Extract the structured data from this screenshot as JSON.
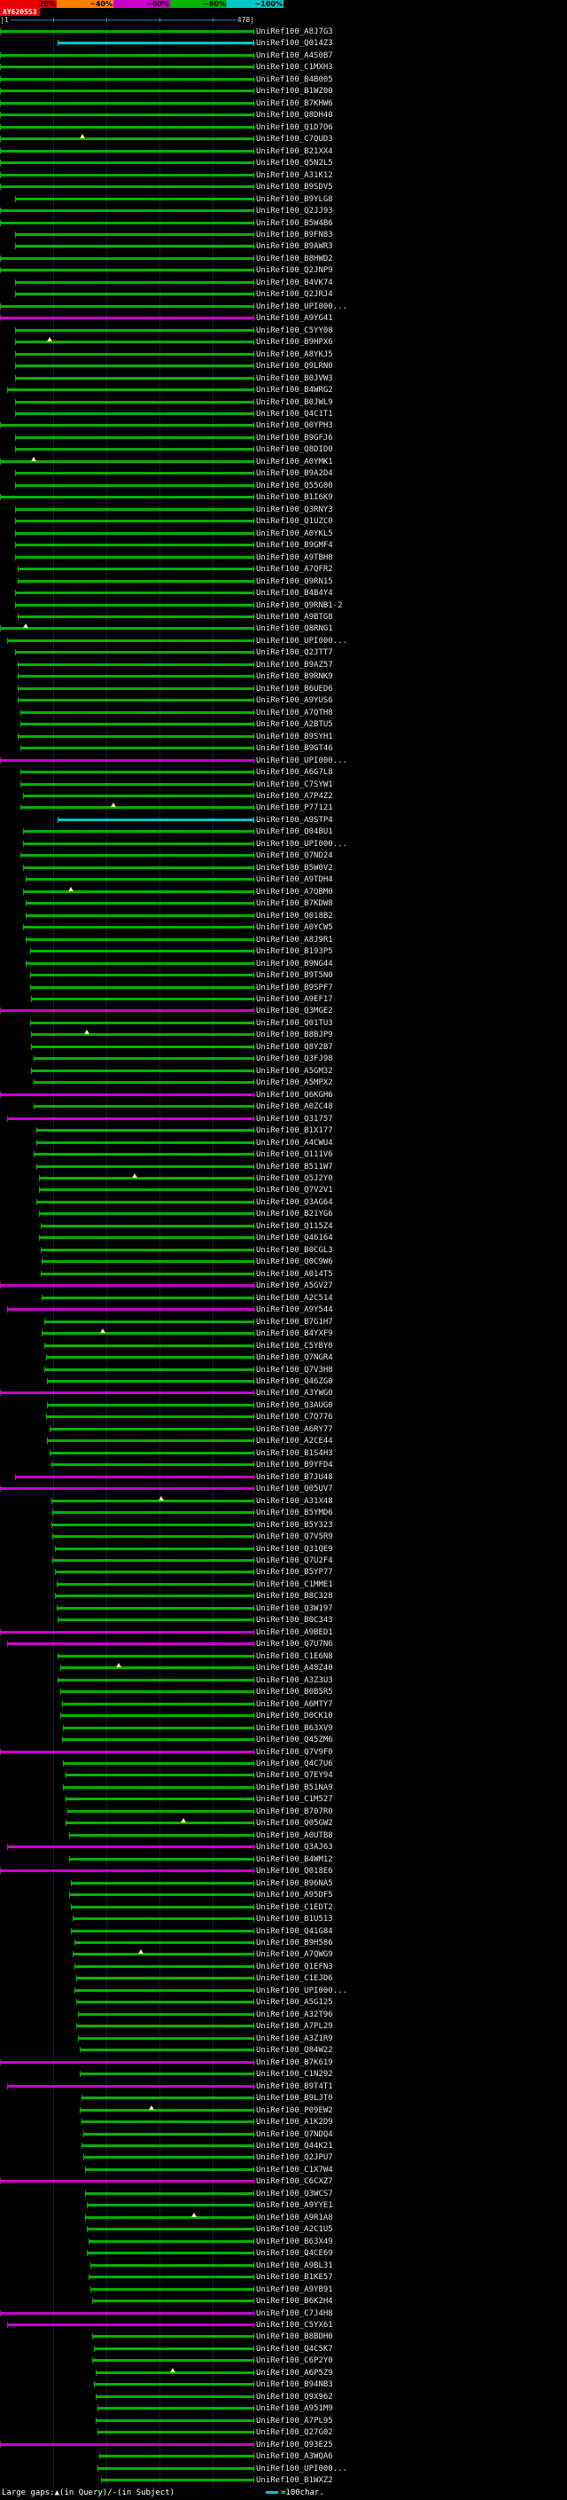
{
  "key": {
    "segments": [
      {
        "label": "20%",
        "color": "#e80000"
      },
      {
        "label": "~40%",
        "color": "#ff8000"
      },
      {
        "label": "~60%",
        "color": "#cc00cc"
      },
      {
        "label": "~80%",
        "color": "#00b400"
      },
      {
        "label": "~100%",
        "color": "#00c8c8"
      }
    ]
  },
  "query": {
    "name": "AY620553",
    "start_label": "|1",
    "end_label": "478|",
    "length": 478
  },
  "colors": {
    "green": "#00b400",
    "magenta": "#cc00cc",
    "cyan": "#00c8c8",
    "red": "#e80000",
    "ruler": "#2e7bbf",
    "gap_marker": "#ffee88"
  },
  "footer": {
    "gaps_legend": "Large gaps:▲(in Query)/-(in Subject)",
    "scale_legend": "=100char."
  },
  "chart_data": {
    "type": "bar",
    "subtype": "alignment-overview-spans",
    "title": "AY620553",
    "x_axis": {
      "min": 1,
      "max": 478,
      "start_label": "|1",
      "end_label": "478|",
      "units": "query position (chars)",
      "gridlines_every": 100
    },
    "score_key_labels": [
      "20%",
      "~40%",
      "~60%",
      "~80%",
      "~100%"
    ],
    "color_classes": {
      "g": "green ~80%",
      "m": "magenta ~60%",
      "c": "cyan ~100%"
    },
    "id_prefix": "UniRef100_",
    "rows": [
      [
        "A8J7G3",
        1,
        478,
        "g"
      ],
      [
        "Q014Z3",
        110,
        478,
        "c"
      ],
      [
        "A4S0B7",
        1,
        478,
        "g"
      ],
      [
        "C1MXH3",
        1,
        478,
        "g"
      ],
      [
        "B4B005",
        1,
        478,
        "g"
      ],
      [
        "B1WZ00",
        1,
        478,
        "g"
      ],
      [
        "B7KHW6",
        1,
        478,
        "g"
      ],
      [
        "Q8DH40",
        1,
        478,
        "g"
      ],
      [
        "Q1D7O6",
        1,
        478,
        "g"
      ],
      [
        "C7QUD3",
        1,
        478,
        "g",
        [
          150
        ]
      ],
      [
        "B21XX4",
        1,
        478,
        "g"
      ],
      [
        "Q5N2L5",
        1,
        478,
        "g"
      ],
      [
        "A31K12",
        1,
        478,
        "g"
      ],
      [
        "B9SDV5",
        1,
        478,
        "g"
      ],
      [
        "B9YLG8",
        30,
        478,
        "g"
      ],
      [
        "Q2JJ93",
        1,
        478,
        "g"
      ],
      [
        "B5W4B6",
        1,
        478,
        "g"
      ],
      [
        "B9FN83",
        30,
        478,
        "g"
      ],
      [
        "B9AWR3",
        30,
        478,
        "g"
      ],
      [
        "B8HWD2",
        1,
        478,
        "g"
      ],
      [
        "Q2JNP9",
        1,
        478,
        "g"
      ],
      [
        "B4VK74",
        30,
        478,
        "g"
      ],
      [
        "Q2JRJ4",
        30,
        478,
        "g"
      ],
      [
        "UPI000...",
        1,
        478,
        "g"
      ],
      [
        "A9YG41",
        1,
        478,
        "m"
      ],
      [
        "C5YY08",
        30,
        478,
        "g"
      ],
      [
        "B9HPX6",
        30,
        478,
        "g",
        [
          90
        ]
      ],
      [
        "A8YKJ5",
        30,
        478,
        "g"
      ],
      [
        "Q9LRN0",
        30,
        478,
        "g"
      ],
      [
        "B0JVW3",
        30,
        478,
        "g"
      ],
      [
        "B4WRG2",
        14,
        478,
        "g"
      ],
      [
        "B0JWL9",
        30,
        478,
        "g"
      ],
      [
        "Q4C1T1",
        30,
        478,
        "g"
      ],
      [
        "Q0YPH3",
        1,
        478,
        "g"
      ],
      [
        "B9GFJ6",
        30,
        478,
        "g"
      ],
      [
        "Q8DID0",
        30,
        478,
        "g"
      ],
      [
        "A0YMK1",
        1,
        478,
        "g",
        [
          60
        ]
      ],
      [
        "B9A2D4",
        30,
        478,
        "g"
      ],
      [
        "Q55G00",
        30,
        478,
        "g"
      ],
      [
        "B1I6K9",
        1,
        478,
        "g"
      ],
      [
        "Q3RNY3",
        30,
        478,
        "g"
      ],
      [
        "Q1UZC0",
        30,
        478,
        "g"
      ],
      [
        "A0YKL5",
        30,
        478,
        "g"
      ],
      [
        "B9GMF4",
        30,
        478,
        "g"
      ],
      [
        "A9TBH8",
        30,
        478,
        "g"
      ],
      [
        "A7QFR2",
        34,
        478,
        "g"
      ],
      [
        "Q9RN15",
        34,
        478,
        "g"
      ],
      [
        "B4B4Y4",
        30,
        478,
        "g"
      ],
      [
        "Q9RNB1-2",
        30,
        478,
        "g"
      ],
      [
        "A9BTG8",
        34,
        478,
        "g"
      ],
      [
        "Q8RNG1",
        1,
        478,
        "g",
        [
          45
        ]
      ],
      [
        "UPI000...",
        14,
        478,
        "g"
      ],
      [
        "Q2JTT7",
        30,
        478,
        "g"
      ],
      [
        "B9AZ57",
        34,
        478,
        "g"
      ],
      [
        "B9RNK9",
        34,
        478,
        "g"
      ],
      [
        "B6UED6",
        34,
        478,
        "g"
      ],
      [
        "A9YUS6",
        34,
        478,
        "g"
      ],
      [
        "A7QTH8",
        40,
        478,
        "g"
      ],
      [
        "A2BTU5",
        40,
        478,
        "g"
      ],
      [
        "B9SYH1",
        34,
        478,
        "g"
      ],
      [
        "B9GT46",
        40,
        478,
        "g"
      ],
      [
        "UPI000...",
        1,
        478,
        "m"
      ],
      [
        "A6G7L8",
        40,
        478,
        "g"
      ],
      [
        "C7SYW1",
        40,
        478,
        "g"
      ],
      [
        "A7P4Z2",
        44,
        478,
        "g"
      ],
      [
        "P77121",
        40,
        478,
        "g",
        [
          210
        ]
      ],
      [
        "A9STP4",
        110,
        478,
        "c"
      ],
      [
        "Q04BU1",
        44,
        478,
        "g"
      ],
      [
        "UPI000...",
        44,
        478,
        "g"
      ],
      [
        "Q7ND24",
        40,
        478,
        "g"
      ],
      [
        "B5W0V2",
        44,
        478,
        "g"
      ],
      [
        "A9TDH4",
        50,
        478,
        "g"
      ],
      [
        "A7QBM0",
        44,
        478,
        "g",
        [
          130
        ]
      ],
      [
        "B7KDW8",
        50,
        478,
        "g"
      ],
      [
        "Q018B2",
        50,
        478,
        "g"
      ],
      [
        "A0YCW5",
        44,
        478,
        "g"
      ],
      [
        "A8J9R1",
        50,
        478,
        "g"
      ],
      [
        "B193P5",
        57,
        478,
        "g"
      ],
      [
        "B9NG44",
        50,
        478,
        "g"
      ],
      [
        "B9T5N0",
        57,
        478,
        "g"
      ],
      [
        "B9SPF7",
        57,
        478,
        "g"
      ],
      [
        "A9EF17",
        60,
        478,
        "g"
      ],
      [
        "Q3MGE2",
        1,
        478,
        "m"
      ],
      [
        "Q01TU3",
        57,
        478,
        "g"
      ],
      [
        "B8BJP9",
        60,
        478,
        "g",
        [
          160
        ]
      ],
      [
        "Q8Y2B7",
        60,
        478,
        "g"
      ],
      [
        "Q3FJ98",
        64,
        478,
        "g"
      ],
      [
        "A5GM32",
        60,
        478,
        "g"
      ],
      [
        "A5MPX2",
        64,
        478,
        "g"
      ],
      [
        "Q6KGH6",
        1,
        478,
        "m"
      ],
      [
        "A0ZC48",
        64,
        478,
        "g"
      ],
      [
        "Q31757",
        14,
        478,
        "m"
      ],
      [
        "B1X177",
        70,
        478,
        "g"
      ],
      [
        "A4CWU4",
        70,
        478,
        "g"
      ],
      [
        "Q111V6",
        64,
        478,
        "g"
      ],
      [
        "B511W7",
        70,
        478,
        "g"
      ],
      [
        "Q5J2Y0",
        74,
        478,
        "g",
        [
          250
        ]
      ],
      [
        "Q7V2V1",
        74,
        478,
        "g"
      ],
      [
        "Q3AG64",
        70,
        478,
        "g"
      ],
      [
        "B21YG6",
        74,
        478,
        "g"
      ],
      [
        "Q115Z4",
        77,
        478,
        "g"
      ],
      [
        "Q46164",
        74,
        478,
        "g"
      ],
      [
        "B0CGL3",
        77,
        478,
        "g"
      ],
      [
        "Q0C9W6",
        80,
        478,
        "g"
      ],
      [
        "A014T5",
        77,
        478,
        "g"
      ],
      [
        "A5GV27",
        1,
        478,
        "m"
      ],
      [
        "A2C514",
        80,
        478,
        "g"
      ],
      [
        "A9Y544",
        14,
        478,
        "m"
      ],
      [
        "B7G1H7",
        84,
        478,
        "g"
      ],
      [
        "B4YXF9",
        80,
        478,
        "g",
        [
          190
        ]
      ],
      [
        "C5YBY0",
        84,
        478,
        "g"
      ],
      [
        "Q7NGR4",
        87,
        478,
        "g"
      ],
      [
        "Q7V3H8",
        84,
        478,
        "g"
      ],
      [
        "Q46ZG0",
        90,
        478,
        "g"
      ],
      [
        "A3YWG0",
        1,
        478,
        "m"
      ],
      [
        "Q3AUG0",
        90,
        478,
        "g"
      ],
      [
        "C7Q776",
        87,
        478,
        "g"
      ],
      [
        "A6RY77",
        94,
        478,
        "g"
      ],
      [
        "A2CE44",
        90,
        478,
        "g"
      ],
      [
        "B1S4H3",
        94,
        478,
        "g"
      ],
      [
        "B9YFD4",
        97,
        478,
        "g"
      ],
      [
        "B7JU48",
        30,
        478,
        "m"
      ],
      [
        "Q05UV7",
        1,
        478,
        "m"
      ],
      [
        "A31X48",
        97,
        478,
        "g",
        [
          300
        ]
      ],
      [
        "B5YMD6",
        100,
        478,
        "g"
      ],
      [
        "B5Y323",
        97,
        478,
        "g"
      ],
      [
        "Q7V5R9",
        100,
        478,
        "g"
      ],
      [
        "Q31QE9",
        104,
        478,
        "g"
      ],
      [
        "Q7U2F4",
        100,
        478,
        "g"
      ],
      [
        "B5YP77",
        104,
        478,
        "g"
      ],
      [
        "C1MME1",
        107,
        478,
        "g"
      ],
      [
        "B8C328",
        104,
        478,
        "g"
      ],
      [
        "Q3W197",
        107,
        478,
        "g"
      ],
      [
        "B0C343",
        110,
        478,
        "g"
      ],
      [
        "A9BED1",
        1,
        478,
        "m"
      ],
      [
        "Q7U7N6",
        14,
        478,
        "m"
      ],
      [
        "C1E6N8",
        110,
        478,
        "g"
      ],
      [
        "A48Z40",
        114,
        478,
        "g",
        [
          220
        ]
      ],
      [
        "A3Z3U3",
        110,
        478,
        "g"
      ],
      [
        "B0B5R5",
        114,
        478,
        "g"
      ],
      [
        "A6MTY7",
        117,
        478,
        "g"
      ],
      [
        "D0CK10",
        114,
        478,
        "g"
      ],
      [
        "B63XV9",
        120,
        478,
        "g"
      ],
      [
        "Q45ZM6",
        117,
        478,
        "g"
      ],
      [
        "Q7V9F0",
        1,
        478,
        "m"
      ],
      [
        "Q4C7U6",
        120,
        478,
        "g"
      ],
      [
        "Q7EY94",
        124,
        478,
        "g"
      ],
      [
        "B51NA9",
        120,
        478,
        "g"
      ],
      [
        "C1M527",
        124,
        478,
        "g"
      ],
      [
        "B707R0",
        127,
        478,
        "g"
      ],
      [
        "Q05GW2",
        124,
        478,
        "g",
        [
          340
        ]
      ],
      [
        "A0UTB8",
        130,
        478,
        "g"
      ],
      [
        "Q3AJ63",
        14,
        478,
        "m"
      ],
      [
        "B4WM12",
        130,
        478,
        "g"
      ],
      [
        "Q018E6",
        1,
        478,
        "m"
      ],
      [
        "B96NA5",
        134,
        478,
        "g"
      ],
      [
        "A95DF5",
        130,
        478,
        "g"
      ],
      [
        "C1EDT2",
        134,
        478,
        "g"
      ],
      [
        "B1U513",
        137,
        478,
        "g"
      ],
      [
        "Q41G84",
        134,
        478,
        "g"
      ],
      [
        "B9H586",
        140,
        478,
        "g"
      ],
      [
        "A7QWG9",
        137,
        478,
        "g",
        [
          260
        ]
      ],
      [
        "Q1EFN3",
        140,
        478,
        "g"
      ],
      [
        "C1EJD6",
        144,
        478,
        "g"
      ],
      [
        "UPI000...",
        140,
        478,
        "g"
      ],
      [
        "A5G125",
        144,
        478,
        "g"
      ],
      [
        "A32T96",
        147,
        478,
        "g"
      ],
      [
        "A7PL29",
        144,
        478,
        "g"
      ],
      [
        "A3Z1R9",
        147,
        478,
        "g"
      ],
      [
        "Q84W22",
        150,
        478,
        "g"
      ],
      [
        "B7K619",
        1,
        478,
        "m"
      ],
      [
        "C1N292",
        150,
        478,
        "g"
      ],
      [
        "B9T4T1",
        14,
        478,
        "m"
      ],
      [
        "B9LJT0",
        154,
        478,
        "g"
      ],
      [
        "P09EW2",
        150,
        478,
        "g",
        [
          280
        ]
      ],
      [
        "A1K2D9",
        154,
        478,
        "g"
      ],
      [
        "Q7NDQ4",
        157,
        478,
        "g"
      ],
      [
        "Q44K21",
        154,
        478,
        "g"
      ],
      [
        "Q2JPU7",
        157,
        478,
        "g"
      ],
      [
        "C1X7W4",
        160,
        478,
        "g"
      ],
      [
        "C6CXZ7",
        1,
        478,
        "m"
      ],
      [
        "Q3WCS7",
        160,
        478,
        "g"
      ],
      [
        "A9YYE1",
        164,
        478,
        "g"
      ],
      [
        "A9R1A8",
        160,
        478,
        "g",
        [
          360
        ]
      ],
      [
        "A2C1U5",
        164,
        478,
        "g"
      ],
      [
        "B63X49",
        167,
        478,
        "g"
      ],
      [
        "Q4CE69",
        164,
        478,
        "g"
      ],
      [
        "A9BL31",
        170,
        478,
        "g"
      ],
      [
        "B1KE57",
        167,
        478,
        "g"
      ],
      [
        "A9YB91",
        170,
        478,
        "g"
      ],
      [
        "B6K2H4",
        174,
        478,
        "g"
      ],
      [
        "C7J4H8",
        1,
        478,
        "m"
      ],
      [
        "C5YX61",
        14,
        478,
        "m"
      ],
      [
        "B8BDH0",
        174,
        478,
        "g"
      ],
      [
        "Q4C5K7",
        177,
        478,
        "g"
      ],
      [
        "C6P2Y0",
        174,
        478,
        "g"
      ],
      [
        "A6P5Z9",
        180,
        478,
        "g",
        [
          320
        ]
      ],
      [
        "B94NB3",
        177,
        478,
        "g"
      ],
      [
        "Q9X962",
        180,
        478,
        "g"
      ],
      [
        "A951M9",
        184,
        478,
        "g"
      ],
      [
        "A7PL95",
        180,
        478,
        "g"
      ],
      [
        "Q27G02",
        184,
        478,
        "g"
      ],
      [
        "Q93E25",
        1,
        478,
        "m"
      ],
      [
        "A3WQA6",
        187,
        478,
        "g"
      ],
      [
        "UPI000...",
        184,
        478,
        "g"
      ],
      [
        "B1WXZ2",
        190,
        478,
        "g"
      ]
    ]
  }
}
